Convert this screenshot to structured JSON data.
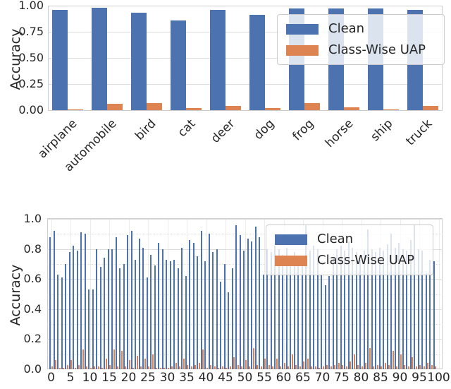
{
  "colors": {
    "clean": "#4C72B0",
    "uap": "#DD8452",
    "grid": "#dddddd",
    "spine": "#cccccc",
    "text": "#262626"
  },
  "chart_data": [
    {
      "type": "bar",
      "title": "",
      "xlabel": "",
      "ylabel": "Accuracy",
      "ylim": [
        0,
        1.0
      ],
      "grid": "horizontal-major",
      "legend_position": "upper right",
      "categories": [
        "airplane",
        "automobile",
        "bird",
        "cat",
        "deer",
        "dog",
        "frog",
        "horse",
        "ship",
        "truck"
      ],
      "ytick_labels": [
        "1.00",
        "0.75",
        "0.50",
        "0.25",
        "0.00"
      ],
      "ytick_values": [
        1.0,
        0.75,
        0.5,
        0.25,
        0.0
      ],
      "series": [
        {
          "name": "Clean",
          "values": [
            0.96,
            0.98,
            0.93,
            0.86,
            0.96,
            0.91,
            0.97,
            0.97,
            0.97,
            0.96
          ]
        },
        {
          "name": "Class-Wise UAP",
          "values": [
            0.01,
            0.06,
            0.07,
            0.02,
            0.04,
            0.02,
            0.07,
            0.03,
            0.01,
            0.04
          ]
        }
      ]
    },
    {
      "type": "bar",
      "title": "",
      "xlabel": "",
      "ylabel": "Accuracy",
      "ylim": [
        0,
        1.0
      ],
      "grid": "horizontal-major-minor-and-vertical",
      "legend_position": "upper right",
      "categories_note": "100 classes indexed 0-99",
      "xtick_labels": [
        "0",
        "5",
        "10",
        "15",
        "20",
        "25",
        "30",
        "35",
        "40",
        "45",
        "50",
        "55",
        "60",
        "65",
        "70",
        "75",
        "80",
        "85",
        "90",
        "95",
        "100"
      ],
      "xtick_values": [
        0,
        5,
        10,
        15,
        20,
        25,
        30,
        35,
        40,
        45,
        50,
        55,
        60,
        65,
        70,
        75,
        80,
        85,
        90,
        95,
        100
      ],
      "ytick_labels": [
        "1.0",
        "0.8",
        "0.6",
        "0.4",
        "0.2",
        "0.0"
      ],
      "ytick_values": [
        1.0,
        0.8,
        0.6,
        0.4,
        0.2,
        0.0
      ],
      "series": [
        {
          "name": "Clean",
          "values": [
            0.88,
            0.92,
            0.63,
            0.61,
            0.7,
            0.78,
            0.82,
            0.79,
            0.91,
            0.9,
            0.53,
            0.53,
            0.8,
            0.68,
            0.74,
            0.8,
            0.8,
            0.88,
            0.67,
            0.7,
            0.89,
            0.92,
            0.73,
            0.87,
            0.81,
            0.61,
            0.76,
            0.69,
            0.84,
            0.8,
            0.73,
            0.72,
            0.73,
            0.67,
            0.81,
            0.62,
            0.86,
            0.84,
            0.75,
            0.92,
            0.72,
            0.9,
            0.78,
            0.8,
            0.58,
            0.7,
            0.51,
            0.67,
            0.96,
            0.89,
            0.79,
            0.87,
            0.85,
            0.95,
            0.88,
            0.63,
            0.8,
            0.78,
            0.82,
            0.8,
            0.76,
            0.81,
            0.72,
            0.78,
            0.74,
            0.73,
            0.96,
            0.79,
            0.82,
            0.8,
            0.63,
            0.56,
            0.62,
            0.74,
            0.8,
            0.82,
            0.79,
            0.85,
            0.81,
            0.78,
            0.73,
            0.79,
            0.93,
            0.8,
            0.78,
            0.81,
            0.79,
            0.83,
            0.9,
            0.81,
            0.84,
            0.8,
            0.79,
            0.86,
            0.96,
            0.8,
            0.79,
            0.64,
            0.73,
            0.72
          ]
        },
        {
          "name": "Class-Wise UAP",
          "values": [
            0.02,
            0.06,
            0.01,
            0.01,
            0.03,
            0.06,
            0.01,
            0.03,
            0.13,
            0.02,
            0.01,
            0.02,
            0.02,
            0.01,
            0.07,
            0.03,
            0.13,
            0.02,
            0.12,
            0.02,
            0.06,
            0.01,
            0.09,
            0.02,
            0.07,
            0.02,
            0.1,
            0.01,
            0.01,
            0.01,
            0.01,
            0.02,
            0.04,
            0.02,
            0.07,
            0.03,
            0.02,
            0.03,
            0.04,
            0.13,
            0.01,
            0.03,
            0.02,
            0.01,
            0.02,
            0.01,
            0.02,
            0.08,
            0.03,
            0.02,
            0.06,
            0.02,
            0.14,
            0.03,
            0.02,
            0.07,
            0.03,
            0.02,
            0.07,
            0.02,
            0.04,
            0.02,
            0.1,
            0.03,
            0.02,
            0.05,
            0.07,
            0.02,
            0.02,
            0.01,
            0.02,
            0.03,
            0.02,
            0.03,
            0.04,
            0.03,
            0.02,
            0.05,
            0.1,
            0.03,
            0.02,
            0.04,
            0.14,
            0.02,
            0.03,
            0.02,
            0.04,
            0.03,
            0.12,
            0.02,
            0.1,
            0.03,
            0.02,
            0.08,
            0.02,
            0.03,
            0.02,
            0.04,
            0.03,
            0.02
          ]
        }
      ]
    }
  ]
}
